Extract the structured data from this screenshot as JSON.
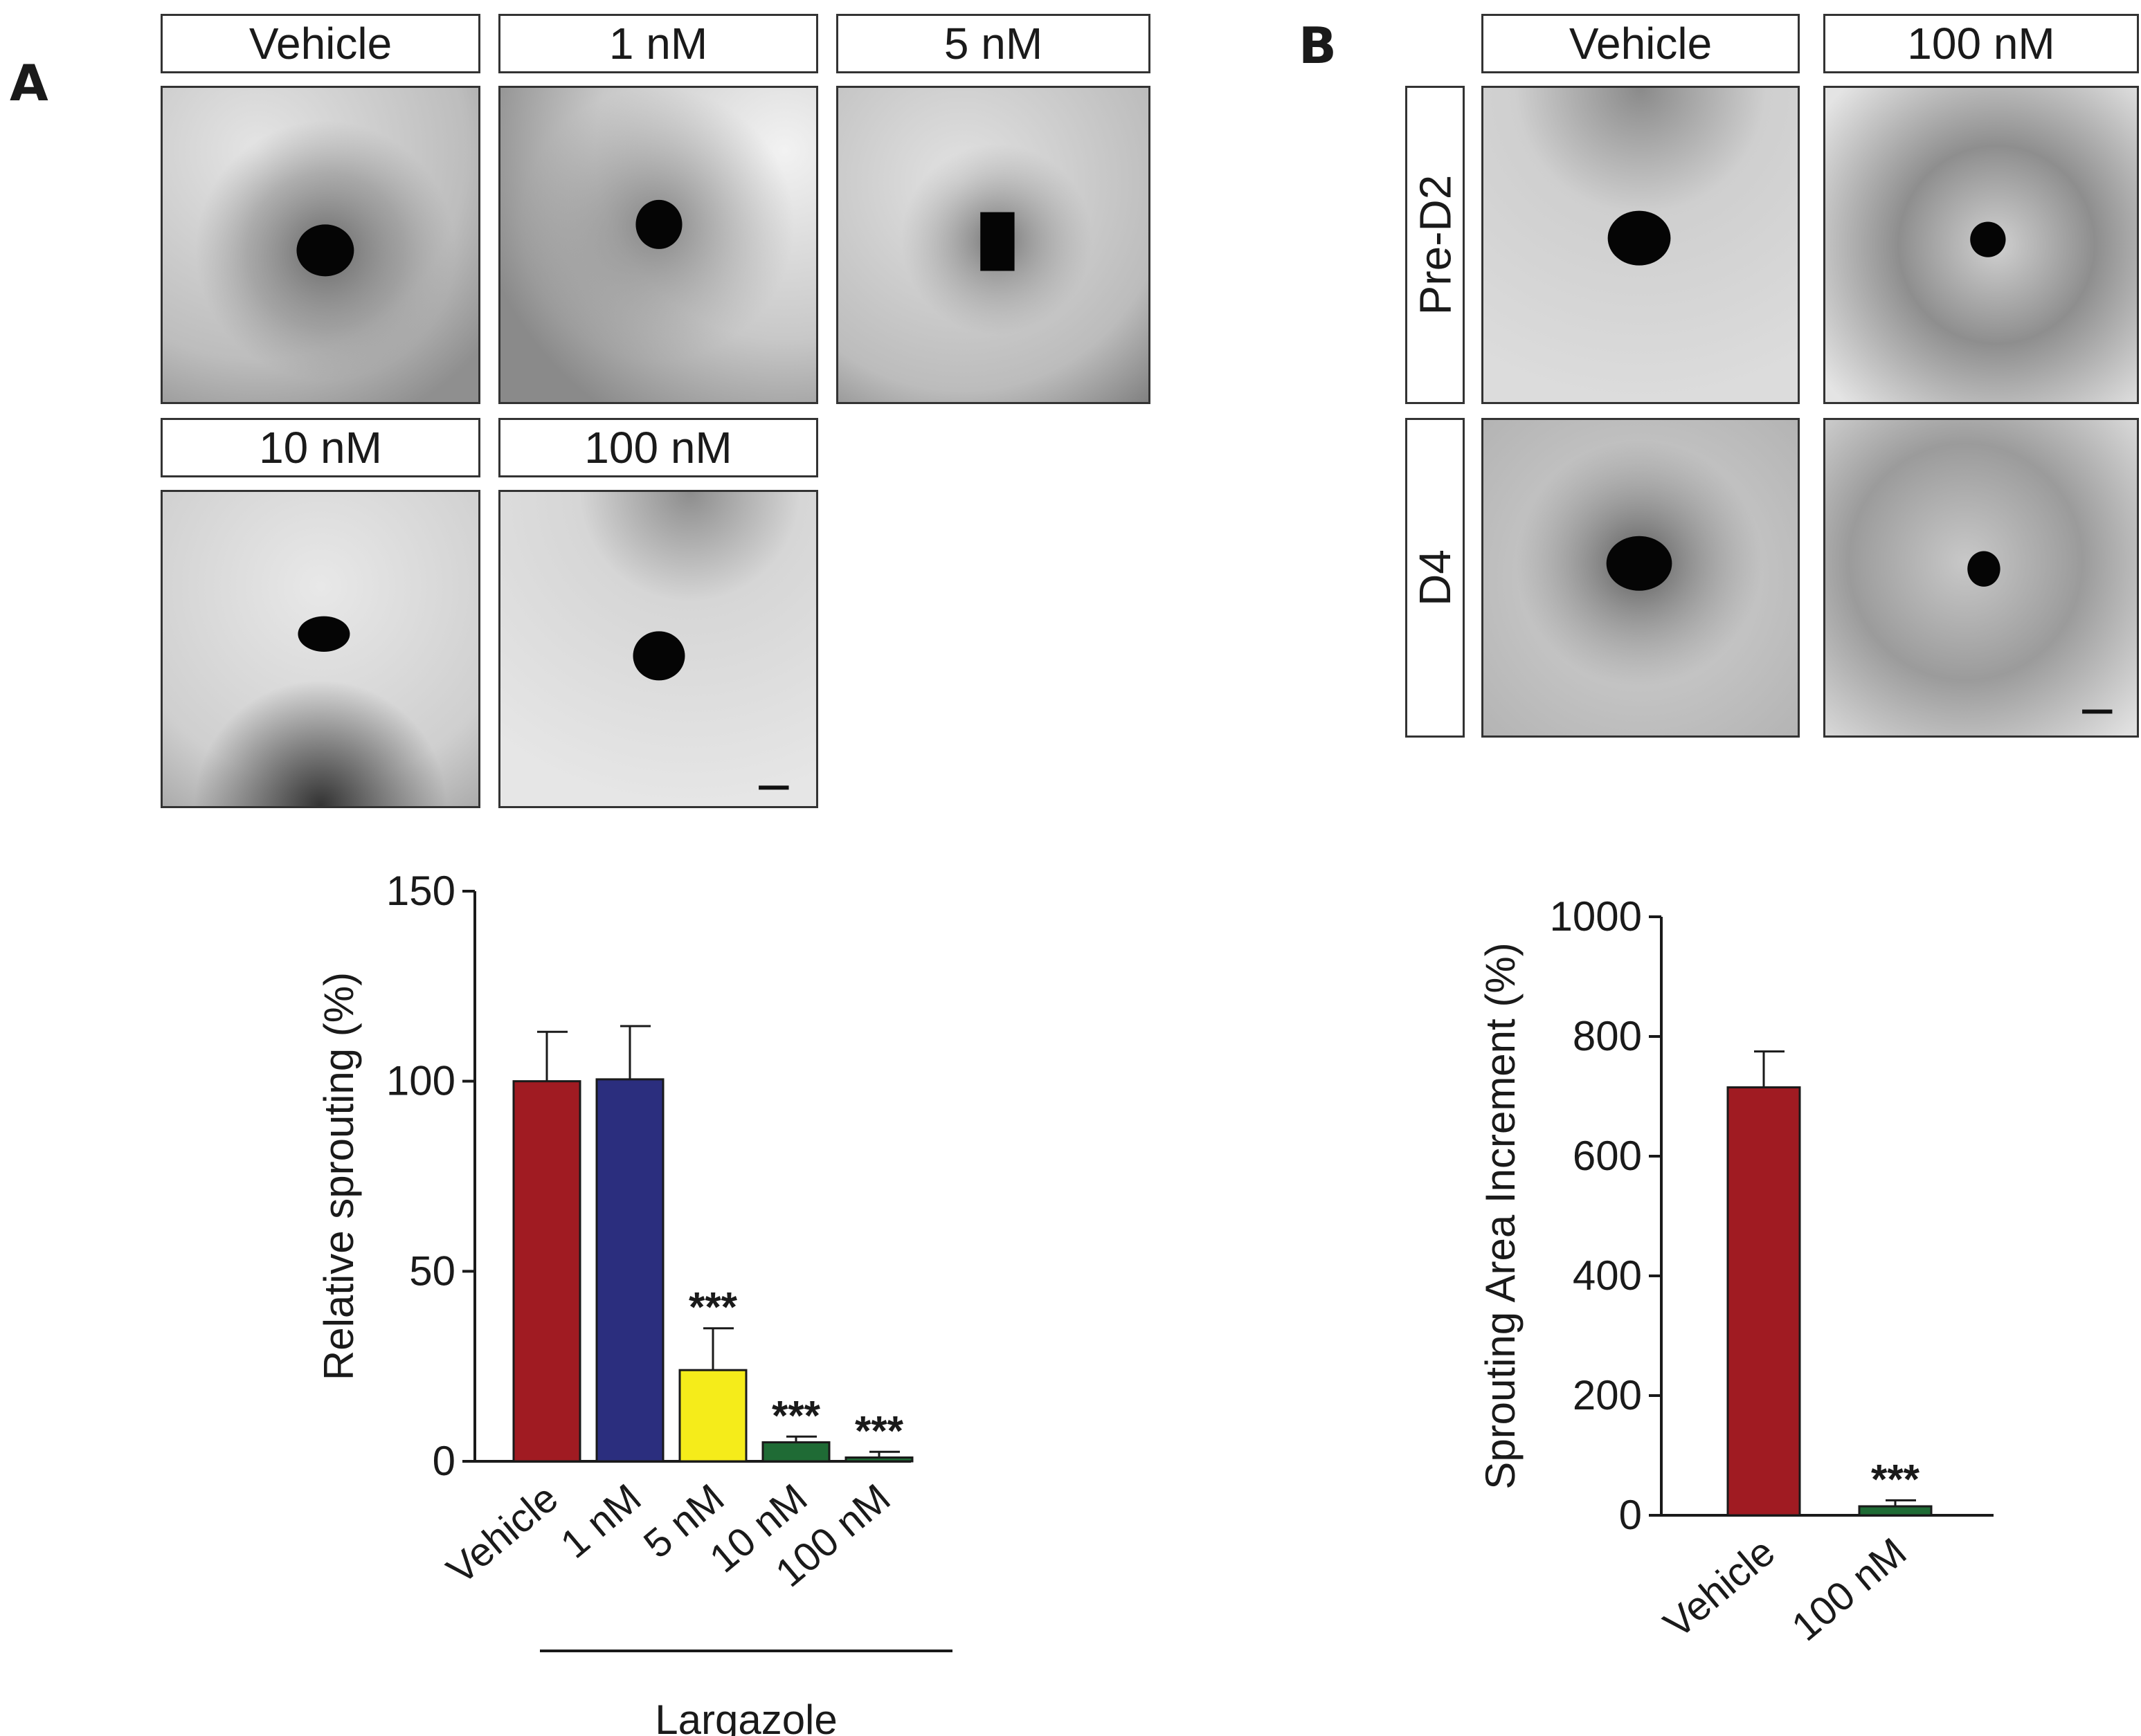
{
  "panel_a": {
    "letter": "A",
    "image_labels": [
      "Vehicle",
      "1 nM",
      "5 nM",
      "10 nM",
      "100 nM"
    ]
  },
  "panel_b": {
    "letter": "B",
    "column_labels": [
      "Vehicle",
      "100 nM"
    ],
    "row_labels": [
      "Pre-D2",
      "D4"
    ]
  },
  "chart_data": [
    {
      "type": "bar",
      "categories": [
        "Vehicle",
        "1 nM",
        "5 nM",
        "10 nM",
        "100 nM"
      ],
      "values": [
        100,
        100.5,
        24,
        5,
        1
      ],
      "errors": [
        13,
        14,
        11,
        1.5,
        1.5
      ],
      "colors": [
        "#a01b22",
        "#2b2e7e",
        "#f5ec1a",
        "#1f6b35",
        "#1f6b35"
      ],
      "significance": [
        "",
        "",
        "***",
        "***",
        "***"
      ],
      "ylabel": "Relative sprouting (%)",
      "yticks": [
        0,
        50,
        100,
        150
      ],
      "ylim": [
        0,
        150
      ],
      "group_label": "Largazole"
    },
    {
      "type": "bar",
      "categories": [
        "Vehicle",
        "100 nM"
      ],
      "values": [
        715,
        15
      ],
      "errors": [
        60,
        10
      ],
      "colors": [
        "#a01b22",
        "#1f6b35"
      ],
      "significance": [
        "",
        "***"
      ],
      "ylabel": "Sprouting Area Increment (%)",
      "yticks": [
        0,
        200,
        400,
        600,
        800,
        1000
      ],
      "ylim": [
        0,
        1000
      ]
    }
  ]
}
